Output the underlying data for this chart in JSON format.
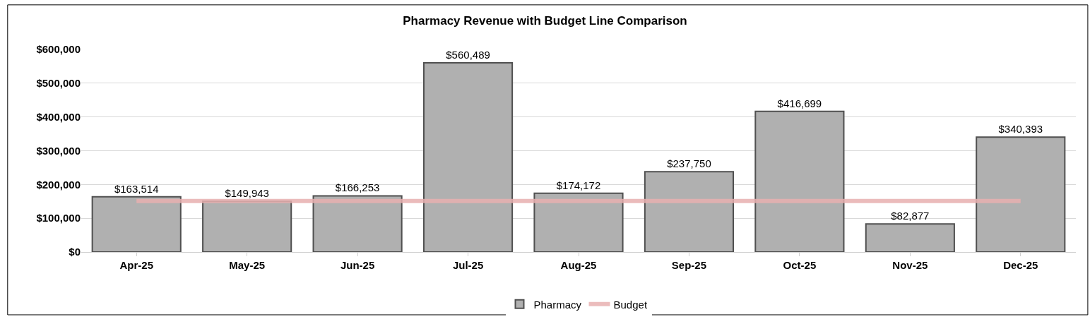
{
  "chart_data": {
    "type": "bar",
    "title": "Pharmacy Revenue with Budget Line Comparison",
    "categories": [
      "Apr-25",
      "May-25",
      "Jun-25",
      "Jul-25",
      "Aug-25",
      "Sep-25",
      "Oct-25",
      "Nov-25",
      "Dec-25"
    ],
    "series": [
      {
        "name": "Pharmacy",
        "color": "#b0b0b0",
        "values": [
          163514,
          149943,
          166253,
          560489,
          174172,
          237750,
          416699,
          82877,
          340393
        ],
        "value_labels": [
          "$163,514",
          "$149,943",
          "$166,253",
          "$560,489",
          "$174,172",
          "$237,750",
          "$416,699",
          "$82,877",
          "$340,393"
        ]
      },
      {
        "name": "Budget",
        "type": "line",
        "color": "#e8b0b0",
        "values": [
          151000,
          151000,
          151000,
          151000,
          151000,
          151000,
          151000,
          151000,
          151000
        ]
      }
    ],
    "ylim": [
      0,
      600000
    ],
    "yticks": [
      {
        "value": 0,
        "label": "$0"
      },
      {
        "value": 100000,
        "label": "$100,000"
      },
      {
        "value": 200000,
        "label": "$200,000"
      },
      {
        "value": 300000,
        "label": "$300,000"
      },
      {
        "value": 400000,
        "label": "$400,000"
      },
      {
        "value": 500000,
        "label": "$500,000"
      },
      {
        "value": 600000,
        "label": "$600,000"
      }
    ],
    "grid": "y",
    "legend": "bottom"
  }
}
